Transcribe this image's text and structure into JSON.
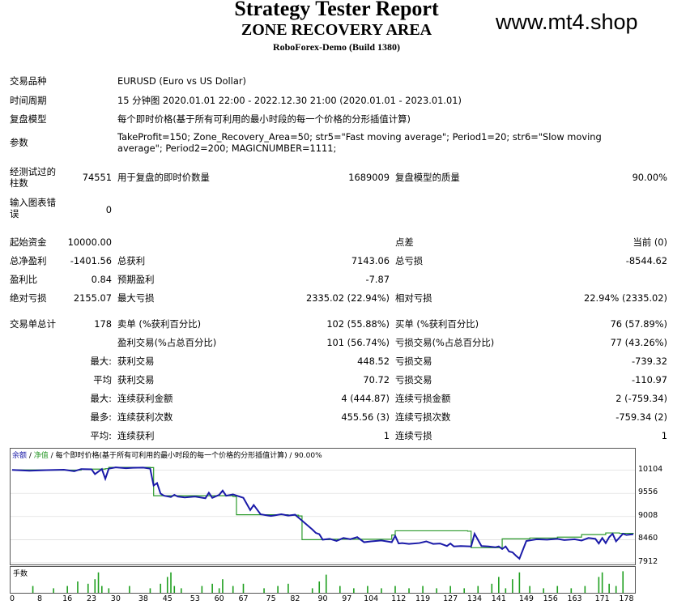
{
  "header": {
    "title": "Strategy Tester Report",
    "ea_name": "ZONE RECOVERY AREA",
    "server": "RoboForex-Demo (Build 1380)",
    "watermark": "www.mt4.shop"
  },
  "report": {
    "symbol_label": "交易品种",
    "symbol": "EURUSD (Euro vs US Dollar)",
    "period_label": "时间周期",
    "period": "15 分钟图 2020.01.01 22:00 - 2022.12.30 21:00 (2020.01.01 - 2023.01.01)",
    "model_label": "复盘模型",
    "model": "每个即时价格(基于所有可利用的最小时段的每一个价格的分形插值计算)",
    "params_label": "参数",
    "params": "TakeProfit=150; Zone_Recovery_Area=50; str5=\"Fast moving average\"; Period1=20; str6=\"Slow moving average\"; Period2=200; MAGICNUMBER=1111;",
    "bars_label": "经测试过的柱数",
    "bars": "74551",
    "ticks_label": "用于复盘的即时价数量",
    "ticks": "1689009",
    "quality_label": "复盘模型的质量",
    "quality": "90.00%",
    "errors_label": "输入图表错误",
    "errors": "0",
    "deposit_label": "起始资金",
    "deposit": "10000.00",
    "spread_label": "点差",
    "spread": "当前 (0)",
    "net_label": "总净盈利",
    "net": "-1401.56",
    "gross_profit_label": "总获利",
    "gross_profit": "7143.06",
    "gross_loss_label": "总亏损",
    "gross_loss": "-8544.62",
    "pf_label": "盈利比",
    "pf": "0.84",
    "payoff_label": "预期盈利",
    "payoff": "-7.87",
    "abs_dd_label": "绝对亏损",
    "abs_dd": "2155.07",
    "max_dd_label": "最大亏损",
    "max_dd": "2335.02 (22.94%)",
    "rel_dd_label": "相对亏损",
    "rel_dd": "22.94% (2335.02)",
    "trades_label": "交易单总计",
    "trades": "178",
    "short_label": "卖单 (%获利百分比)",
    "short": "102 (55.88%)",
    "long_label": "买单 (%获利百分比)",
    "long": "76 (57.89%)",
    "profit_trades_label": "盈利交易(%占总百分比)",
    "profit_trades": "101 (56.74%)",
    "loss_trades_label": "亏损交易(%占总百分比)",
    "loss_trades": "77 (43.26%)",
    "largest_label": "最大:",
    "largest_profit_label": "获利交易",
    "largest_profit": "448.52",
    "largest_loss_label": "亏损交易",
    "largest_loss": "-739.32",
    "average_label": "平均",
    "avg_profit_label": "获利交易",
    "avg_profit": "70.72",
    "avg_loss_label": "亏损交易",
    "avg_loss": "-110.97",
    "max_label": "最大:",
    "max_cons_wins_label": "连续获利金额",
    "max_cons_wins": "4 (444.87)",
    "max_cons_losses_label": "连续亏损金额",
    "max_cons_losses": "2 (-759.34)",
    "most_label": "最多:",
    "max_cons_profit_label": "连续获利次数",
    "max_cons_profit": "455.56 (3)",
    "max_cons_loss_label": "连续亏损次数",
    "max_cons_loss": "-759.34 (2)",
    "avg_cons_label": "平均:",
    "avg_cons_wins_label": "连续获利",
    "avg_cons_wins": "1",
    "avg_cons_losses_label": "连续亏损",
    "avg_cons_losses": "1"
  },
  "chart_data": {
    "type": "line",
    "legend": "余额 / 净值 / 每个即时价格(基于所有可利用的最小时段的每一个价格的分形插值计算) / 90.00%",
    "legend_balance": "余额",
    "legend_equity": "净值",
    "legend_rest": " / 每个即时价格(基于所有可利用的最小时段的每一个价格的分形插值计算) / 90.00%",
    "colors": {
      "balance": "#1a1aa8",
      "equity": "#2c9a2c",
      "volume": "#1f9f1f"
    },
    "yticks": [
      10104,
      9556,
      9008,
      8460,
      7912
    ],
    "ylim": [
      7912,
      10230
    ],
    "xticks": [
      0,
      8,
      16,
      23,
      30,
      38,
      45,
      53,
      60,
      67,
      75,
      82,
      90,
      97,
      104,
      112,
      119,
      127,
      134,
      141,
      149,
      156,
      163,
      171,
      178
    ],
    "xlim": [
      0,
      180
    ],
    "series": [
      {
        "name": "余额",
        "x": [
          0,
          5,
          10,
          15,
          18,
          20,
          23,
          24,
          26,
          27,
          28,
          30,
          33,
          35,
          38,
          40,
          41,
          42,
          43,
          44,
          46,
          47,
          48,
          50,
          53,
          56,
          57,
          58,
          60,
          61,
          62,
          64,
          67,
          69,
          70,
          72,
          75,
          78,
          80,
          82,
          84,
          87,
          88,
          89,
          90,
          92,
          94,
          96,
          98,
          100,
          102,
          104,
          107,
          110,
          111,
          112,
          113,
          115,
          118,
          120,
          122,
          124,
          126,
          127,
          128,
          130,
          133,
          134,
          136,
          138,
          140,
          141,
          142,
          143,
          144,
          145,
          146,
          147,
          149,
          152,
          155,
          158,
          160,
          163,
          165,
          167,
          169,
          170,
          171,
          172,
          173,
          174,
          175,
          177,
          178,
          180
        ],
        "values": [
          10110,
          10090,
          10105,
          10115,
          10080,
          10130,
          10125,
          10010,
          10130,
          9900,
          10140,
          10170,
          10150,
          10160,
          10165,
          10140,
          9740,
          9800,
          9550,
          9500,
          9470,
          9520,
          9480,
          9460,
          9480,
          9440,
          9570,
          9450,
          9520,
          9620,
          9500,
          9530,
          9450,
          9160,
          9280,
          9060,
          9020,
          9060,
          9030,
          9050,
          8910,
          8700,
          8620,
          8590,
          8460,
          8480,
          8430,
          8500,
          8470,
          8520,
          8400,
          8420,
          8440,
          8400,
          8550,
          8370,
          8380,
          8360,
          8380,
          8420,
          8360,
          8370,
          8310,
          8370,
          8300,
          8310,
          8300,
          8600,
          8310,
          8300,
          8280,
          8300,
          8240,
          8300,
          8180,
          8160,
          8080,
          8010,
          8430,
          8470,
          8460,
          8480,
          8450,
          8470,
          8440,
          8500,
          8480,
          8370,
          8500,
          8380,
          8520,
          8600,
          8420,
          8600,
          8570,
          8590
        ]
      },
      {
        "name": "净值",
        "x": [
          0,
          10,
          20,
          27,
          28,
          40,
          41,
          46,
          64,
          65,
          80,
          83,
          84,
          92,
          108,
          110,
          111,
          132,
          133,
          141,
          142,
          150,
          158,
          165,
          172,
          176,
          180
        ],
        "values": [
          10110,
          10105,
          10130,
          10140,
          10170,
          10165,
          9500,
          9500,
          9480,
          9050,
          9040,
          9020,
          8460,
          8470,
          8470,
          8570,
          8670,
          8660,
          8270,
          8270,
          8480,
          8500,
          8520,
          8580,
          8620,
          8610,
          8620
        ]
      }
    ],
    "volume": {
      "name": "手数",
      "x": [
        6,
        12,
        16,
        19,
        22,
        24,
        25,
        26,
        28,
        34,
        40,
        43,
        45,
        46,
        47,
        49,
        55,
        58,
        60,
        61,
        64,
        67,
        73,
        77,
        80,
        87,
        89,
        91,
        95,
        99,
        103,
        107,
        111,
        115,
        119,
        123,
        127,
        131,
        135,
        139,
        141,
        143,
        145,
        147,
        150,
        154,
        158,
        162,
        166,
        170,
        171,
        173,
        175,
        177
      ],
      "values": [
        0.3,
        0.2,
        0.3,
        0.5,
        0.4,
        0.6,
        0.9,
        0.3,
        0.2,
        0.3,
        0.2,
        0.4,
        0.7,
        0.9,
        0.3,
        0.2,
        0.3,
        0.4,
        0.2,
        0.6,
        0.3,
        0.4,
        0.2,
        0.3,
        0.4,
        0.2,
        0.5,
        0.8,
        0.3,
        0.2,
        0.3,
        0.2,
        0.3,
        0.2,
        0.3,
        0.2,
        0.3,
        0.2,
        0.3,
        0.4,
        0.7,
        0.2,
        0.6,
        0.9,
        0.3,
        0.2,
        0.3,
        0.2,
        0.3,
        0.7,
        0.9,
        0.4,
        0.3,
        0.95
      ]
    }
  }
}
